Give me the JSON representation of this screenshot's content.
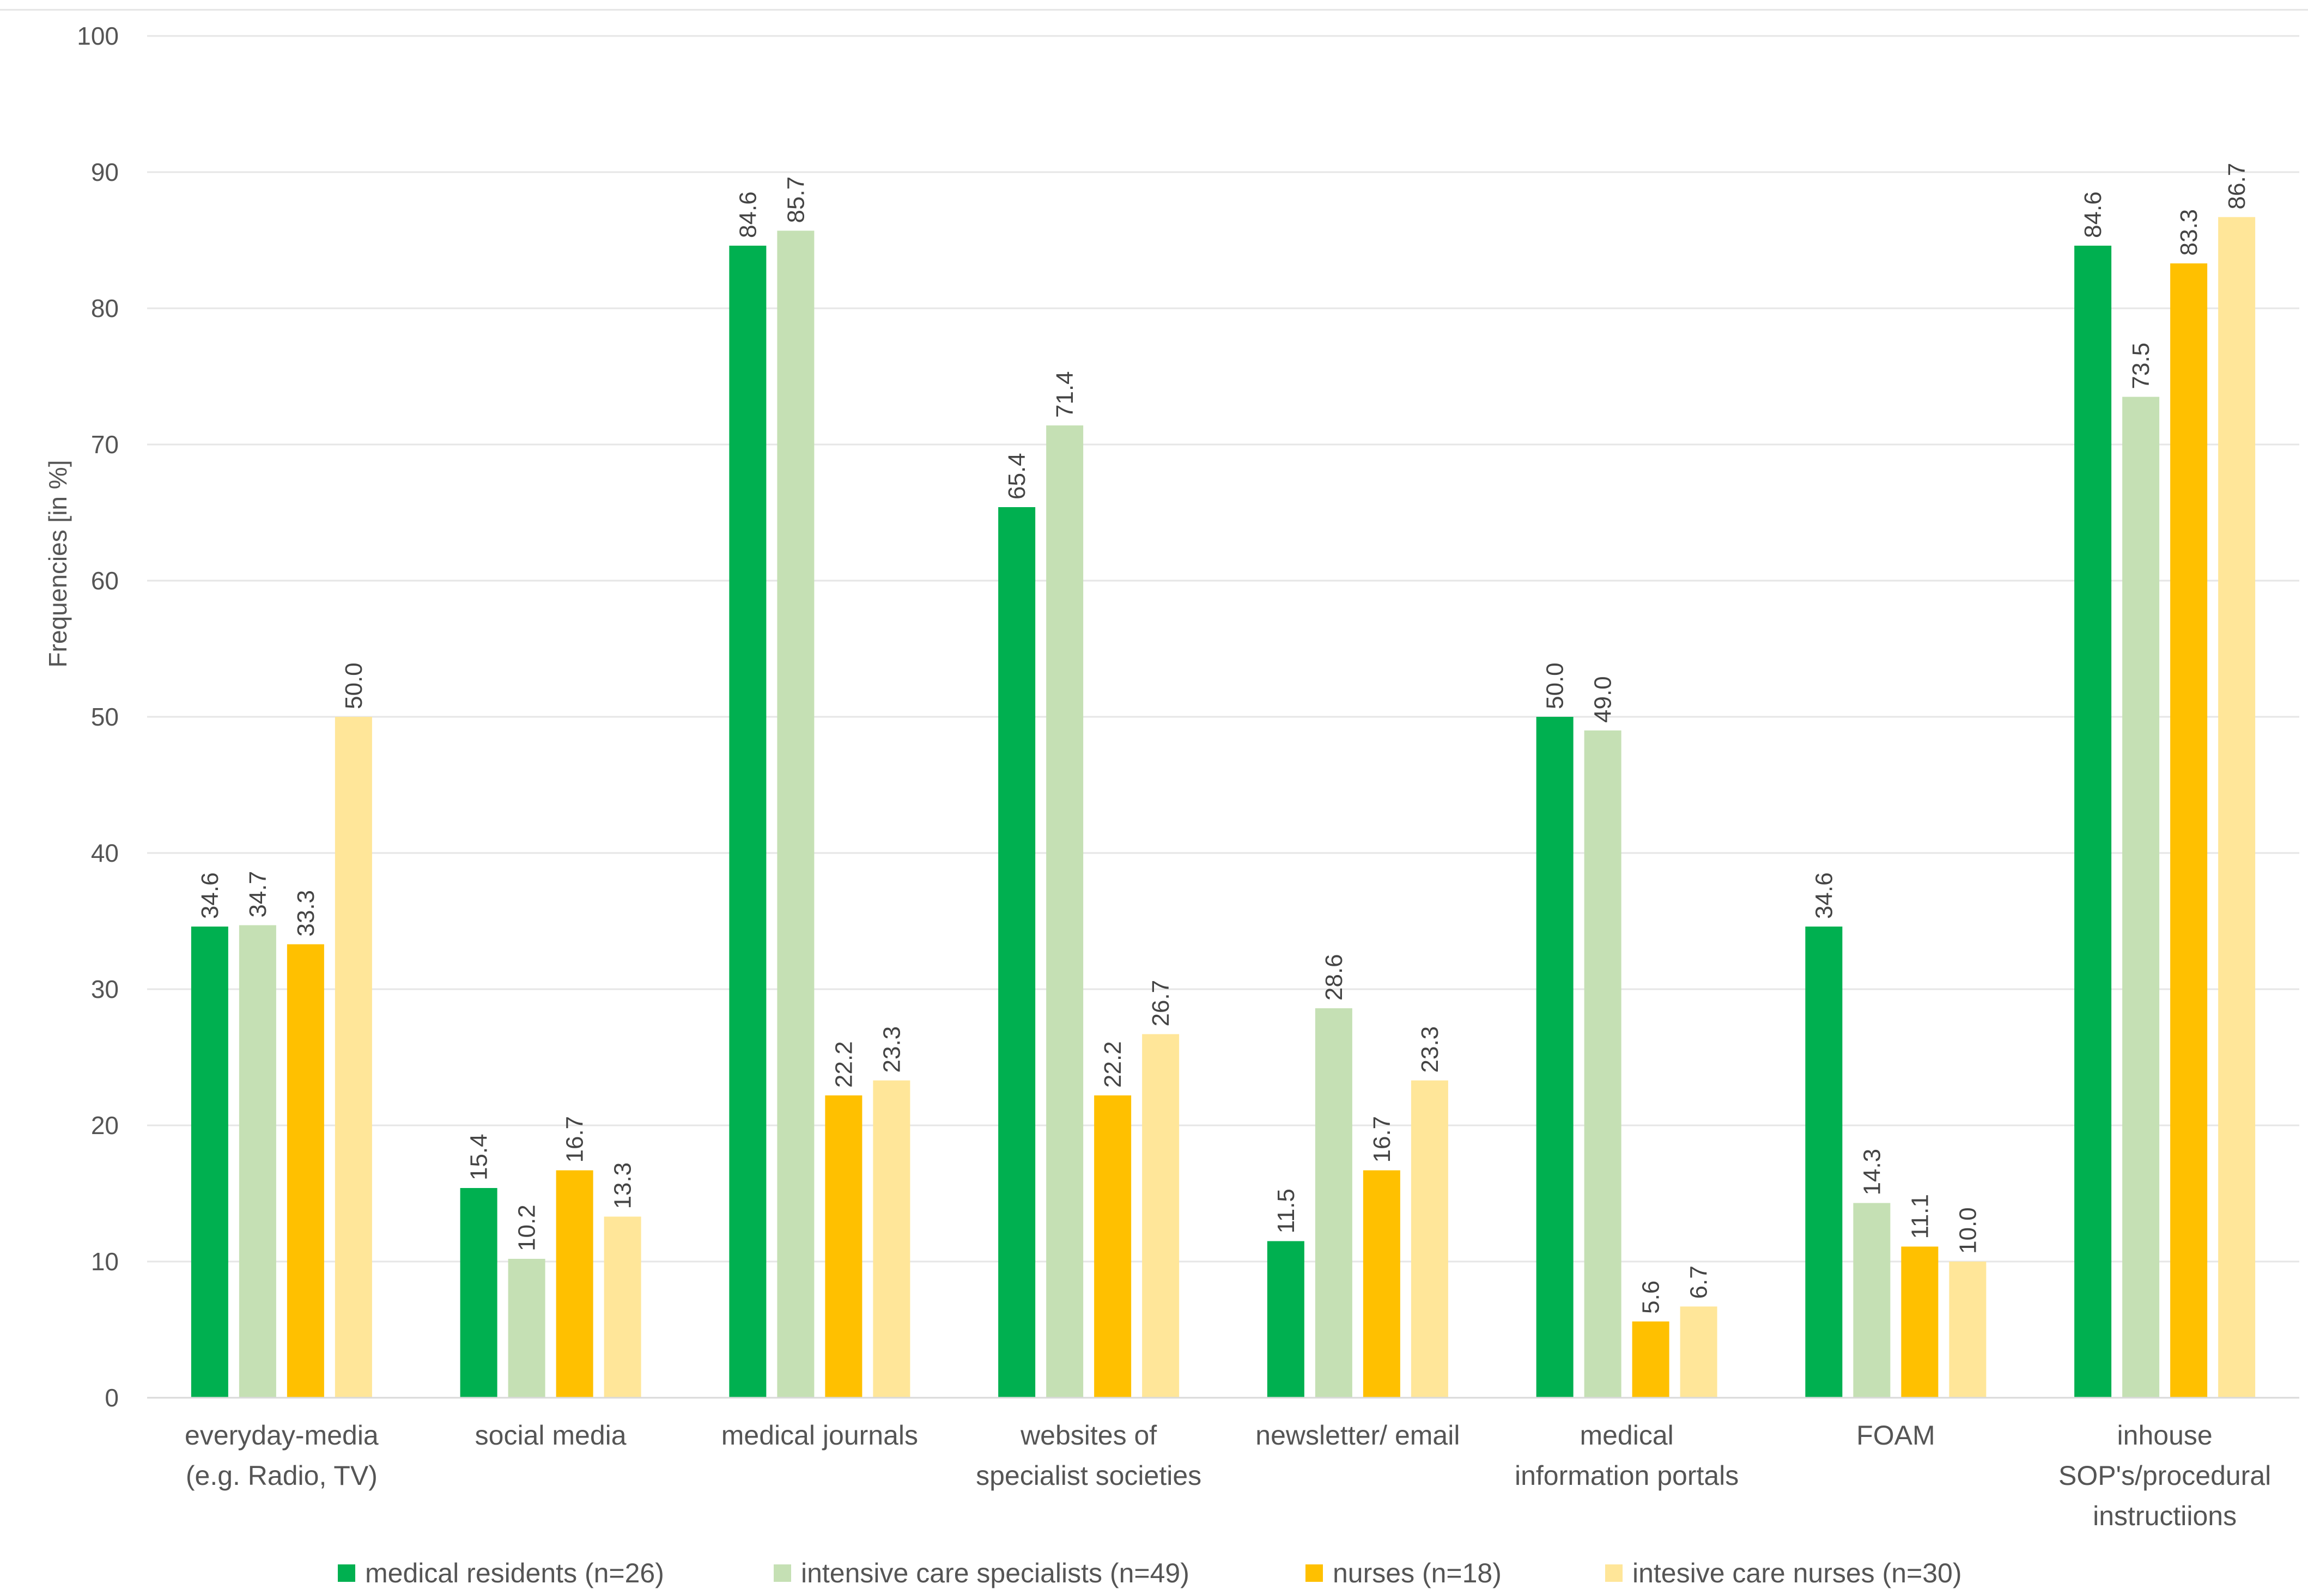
{
  "chart_data": {
    "type": "bar",
    "title": "",
    "xlabel": "",
    "ylabel": "Frequencies [in %]",
    "ylim": [
      0,
      100
    ],
    "ytick_step": 10,
    "legend_position": "bottom",
    "categories": [
      [
        "everyday-media",
        "(e.g. Radio, TV)"
      ],
      [
        "social media"
      ],
      [
        "medical journals"
      ],
      [
        "websites of",
        "specialist societies"
      ],
      [
        "newsletter/ email"
      ],
      [
        "medical",
        "information portals"
      ],
      [
        "FOAM"
      ],
      [
        "inhouse",
        "SOP's/procedural",
        "instructiions"
      ]
    ],
    "series": [
      {
        "name": "medical residents (n=26)",
        "color": "#00b050",
        "values": [
          34.6,
          15.4,
          84.6,
          65.4,
          11.5,
          50.0,
          34.6,
          84.6
        ]
      },
      {
        "name": "intensive care specialists (n=49)",
        "color": "#c5e0b4",
        "values": [
          34.7,
          10.2,
          85.7,
          71.4,
          28.6,
          49.0,
          14.3,
          73.5
        ]
      },
      {
        "name": "nurses (n=18)",
        "color": "#ffc000",
        "values": [
          33.3,
          16.7,
          22.2,
          22.2,
          16.7,
          5.6,
          11.1,
          83.3
        ]
      },
      {
        "name": "intesive care nurses (n=30)",
        "color": "#ffe699",
        "values": [
          50.0,
          13.3,
          23.3,
          26.7,
          23.3,
          6.7,
          10.0,
          86.7
        ]
      }
    ]
  }
}
